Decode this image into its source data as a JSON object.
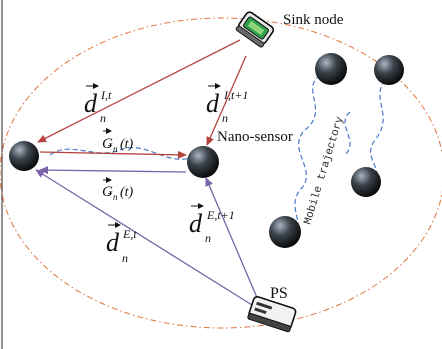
{
  "labels": {
    "sink_node": "Sink node",
    "nano_sensor": "Nano-sensor",
    "ps": "PS",
    "mobile_trajectory": "Mobile trajectory"
  },
  "vectors": {
    "d_info_t": {
      "base": "d",
      "sub": "n",
      "sup": "I,t"
    },
    "d_info_t1": {
      "base": "d",
      "sub": "n",
      "sup": "I,t+1"
    },
    "d_energy_t": {
      "base": "d",
      "sub": "n",
      "sup": "E,t"
    },
    "d_energy_t1": {
      "base": "d",
      "sub": "n",
      "sup": "E,t+1"
    },
    "g_top": {
      "base": "Ǥ",
      "sub": "n",
      "arg": "(t)"
    },
    "g_bottom": {
      "base": "Ǥ",
      "sub": "n",
      "arg": "(t)"
    }
  },
  "icons": {
    "sink": "sink-node-device-icon",
    "ps": "power-station-icon",
    "node": "sensor-node-sphere-icon"
  },
  "colors": {
    "info_arrow": "#b5443f",
    "energy_arrow": "#7a63a8",
    "boundary": "#e0733c",
    "trajectory": "#4a78c2",
    "node_dark": "#141414",
    "node_light": "#9aa7b4"
  }
}
